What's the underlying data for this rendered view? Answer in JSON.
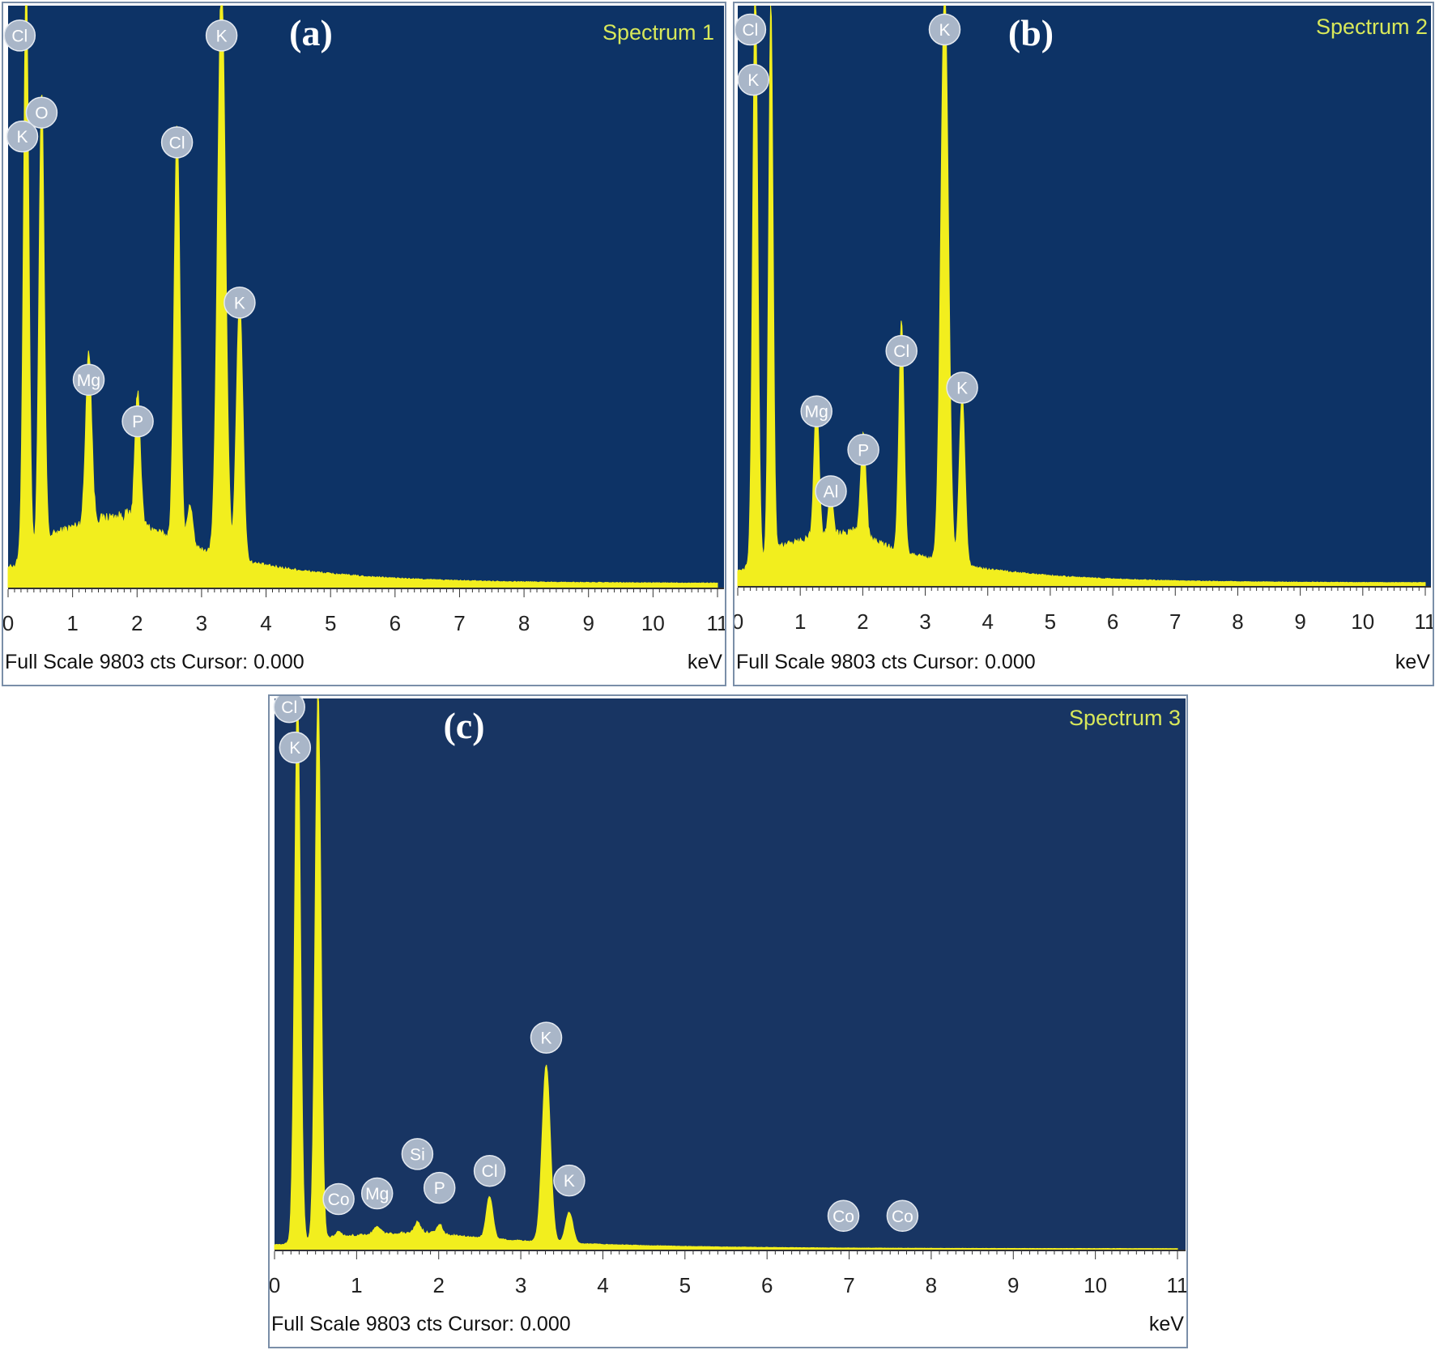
{
  "chart_data": [
    {
      "type": "area",
      "panel_label": "(a)",
      "title": "Spectrum 1",
      "footer": "Full Scale 9803 cts Cursor: 0.000",
      "xlabel": "keV",
      "xlim": [
        0,
        11
      ],
      "xticks": [
        "0",
        "1",
        "2",
        "3",
        "4",
        "5",
        "6",
        "7",
        "8",
        "9",
        "10",
        "11"
      ],
      "ylim": [
        0,
        9803
      ],
      "baseline": 1200,
      "background_color": "#0d3366",
      "series_color": "#f2ee1e",
      "peaks": [
        {
          "x": 0.28,
          "y": 9803,
          "sigma": 0.04
        },
        {
          "x": 0.52,
          "y": 7600,
          "sigma": 0.04
        },
        {
          "x": 1.25,
          "y": 2900,
          "sigma": 0.045
        },
        {
          "x": 2.01,
          "y": 2200,
          "sigma": 0.04
        },
        {
          "x": 2.62,
          "y": 7000,
          "sigma": 0.045
        },
        {
          "x": 2.82,
          "y": 700,
          "sigma": 0.04
        },
        {
          "x": 3.31,
          "y": 9803,
          "sigma": 0.06
        },
        {
          "x": 3.59,
          "y": 4400,
          "sigma": 0.05
        }
      ],
      "labels": [
        {
          "text": "Cl",
          "x": 0.18,
          "y": 9300
        },
        {
          "text": "K",
          "x": 0.22,
          "y": 7600
        },
        {
          "text": "O",
          "x": 0.52,
          "y": 8000
        },
        {
          "text": "Mg",
          "x": 1.25,
          "y": 3500
        },
        {
          "text": "P",
          "x": 2.01,
          "y": 2800
        },
        {
          "text": "Cl",
          "x": 2.62,
          "y": 7500
        },
        {
          "text": "K",
          "x": 3.31,
          "y": 9300
        },
        {
          "text": "K",
          "x": 3.59,
          "y": 4800
        }
      ]
    },
    {
      "type": "area",
      "panel_label": "(b)",
      "title": "Spectrum 2",
      "footer": "Full Scale 9803 cts Cursor: 0.000",
      "xlabel": "keV",
      "xlim": [
        0,
        11
      ],
      "xticks": [
        "0",
        "1",
        "2",
        "3",
        "4",
        "5",
        "6",
        "7",
        "8",
        "9",
        "10",
        "11"
      ],
      "ylim": [
        0,
        9803
      ],
      "baseline": 900,
      "background_color": "#0d3366",
      "series_color": "#f2ee1e",
      "peaks": [
        {
          "x": 0.28,
          "y": 9803,
          "sigma": 0.04
        },
        {
          "x": 0.53,
          "y": 9300,
          "sigma": 0.035
        },
        {
          "x": 1.26,
          "y": 2300,
          "sigma": 0.04
        },
        {
          "x": 1.49,
          "y": 700,
          "sigma": 0.035
        },
        {
          "x": 2.01,
          "y": 1800,
          "sigma": 0.04
        },
        {
          "x": 2.62,
          "y": 3900,
          "sigma": 0.04
        },
        {
          "x": 3.31,
          "y": 9803,
          "sigma": 0.06
        },
        {
          "x": 3.59,
          "y": 2900,
          "sigma": 0.045
        }
      ],
      "labels": [
        {
          "text": "Cl",
          "x": 0.2,
          "y": 9400
        },
        {
          "text": "K",
          "x": 0.25,
          "y": 8550
        },
        {
          "text": "Mg",
          "x": 1.26,
          "y": 2950
        },
        {
          "text": "Al",
          "x": 1.49,
          "y": 1600
        },
        {
          "text": "P",
          "x": 2.01,
          "y": 2300
        },
        {
          "text": "Cl",
          "x": 2.62,
          "y": 3970
        },
        {
          "text": "K",
          "x": 3.31,
          "y": 9400
        },
        {
          "text": "K",
          "x": 3.59,
          "y": 3350
        }
      ]
    },
    {
      "type": "area",
      "panel_label": "(c)",
      "title": "Spectrum 3",
      "footer": "Full Scale 9803 cts Cursor: 0.000",
      "xlabel": "keV",
      "xlim": [
        0,
        11
      ],
      "xticks": [
        "0",
        "1",
        "2",
        "3",
        "4",
        "5",
        "6",
        "7",
        "8",
        "9",
        "10",
        "11"
      ],
      "ylim": [
        0,
        9803
      ],
      "baseline": 300,
      "background_color": "#183563",
      "series_color": "#f2ee1e",
      "peaks": [
        {
          "x": 0.28,
          "y": 9803,
          "sigma": 0.035
        },
        {
          "x": 0.53,
          "y": 9803,
          "sigma": 0.035
        },
        {
          "x": 0.78,
          "y": 90,
          "sigma": 0.03
        },
        {
          "x": 1.25,
          "y": 130,
          "sigma": 0.04
        },
        {
          "x": 1.74,
          "y": 190,
          "sigma": 0.035
        },
        {
          "x": 2.01,
          "y": 170,
          "sigma": 0.035
        },
        {
          "x": 2.62,
          "y": 750,
          "sigma": 0.04
        },
        {
          "x": 3.31,
          "y": 3160,
          "sigma": 0.05
        },
        {
          "x": 3.59,
          "y": 550,
          "sigma": 0.045
        }
      ],
      "labels": [
        {
          "text": "Cl",
          "x": 0.18,
          "y": 9650
        },
        {
          "text": "K",
          "x": 0.25,
          "y": 8930
        },
        {
          "text": "Co",
          "x": 0.78,
          "y": 900
        },
        {
          "text": "Mg",
          "x": 1.25,
          "y": 1000
        },
        {
          "text": "Si",
          "x": 1.74,
          "y": 1700
        },
        {
          "text": "P",
          "x": 2.01,
          "y": 1100
        },
        {
          "text": "Cl",
          "x": 2.62,
          "y": 1400
        },
        {
          "text": "K",
          "x": 3.31,
          "y": 3770
        },
        {
          "text": "K",
          "x": 3.59,
          "y": 1230
        },
        {
          "text": "Co",
          "x": 6.93,
          "y": 600
        },
        {
          "text": "Co",
          "x": 7.65,
          "y": 600
        }
      ]
    }
  ]
}
